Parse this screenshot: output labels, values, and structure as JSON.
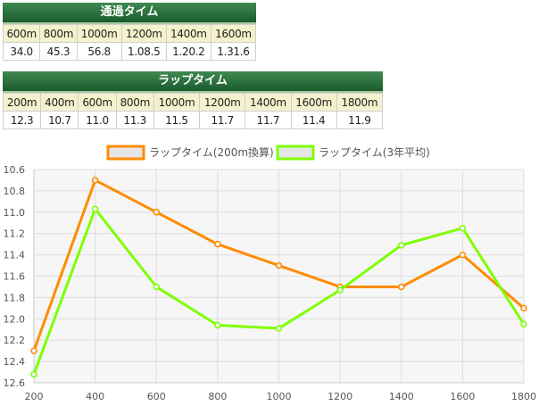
{
  "passing_time": {
    "title": "通過タイム",
    "headers": [
      "600m",
      "800m",
      "1000m",
      "1200m",
      "1400m",
      "1600m"
    ],
    "values": [
      "34.0",
      "45.3",
      "56.8",
      "1.08.5",
      "1.20.2",
      "1.31.6"
    ]
  },
  "lap_time": {
    "title": "ラップタイム",
    "headers": [
      "200m",
      "400m",
      "600m",
      "800m",
      "1000m",
      "1200m",
      "1400m",
      "1600m",
      "1800m"
    ],
    "values": [
      "12.3",
      "10.7",
      "11.0",
      "11.3",
      "11.5",
      "11.7",
      "11.7",
      "11.4",
      "11.9"
    ]
  },
  "chart_data": {
    "type": "line",
    "x": [
      200,
      400,
      600,
      800,
      1000,
      1200,
      1400,
      1600,
      1800
    ],
    "series": [
      {
        "name": "ラップタイム(200m換算)",
        "color": "#ff8c00",
        "values": [
          12.3,
          10.7,
          11.0,
          11.3,
          11.5,
          11.7,
          11.7,
          11.4,
          11.9
        ]
      },
      {
        "name": "ラップタイム(3年平均)",
        "color": "#7fff00",
        "values": [
          12.52,
          10.97,
          11.7,
          12.06,
          12.09,
          11.73,
          11.31,
          11.15,
          12.05
        ]
      }
    ],
    "y_ticks": [
      "10.6",
      "10.8",
      "11.0",
      "11.2",
      "11.4",
      "11.6",
      "11.8",
      "12.0",
      "12.2",
      "12.4",
      "12.6"
    ],
    "x_ticks": [
      "200",
      "400",
      "600",
      "800",
      "1000",
      "1200",
      "1400",
      "1600",
      "1800"
    ],
    "ylim": [
      10.6,
      12.6
    ],
    "y_inverted": true,
    "grid": true,
    "legend_position": "top-center"
  }
}
